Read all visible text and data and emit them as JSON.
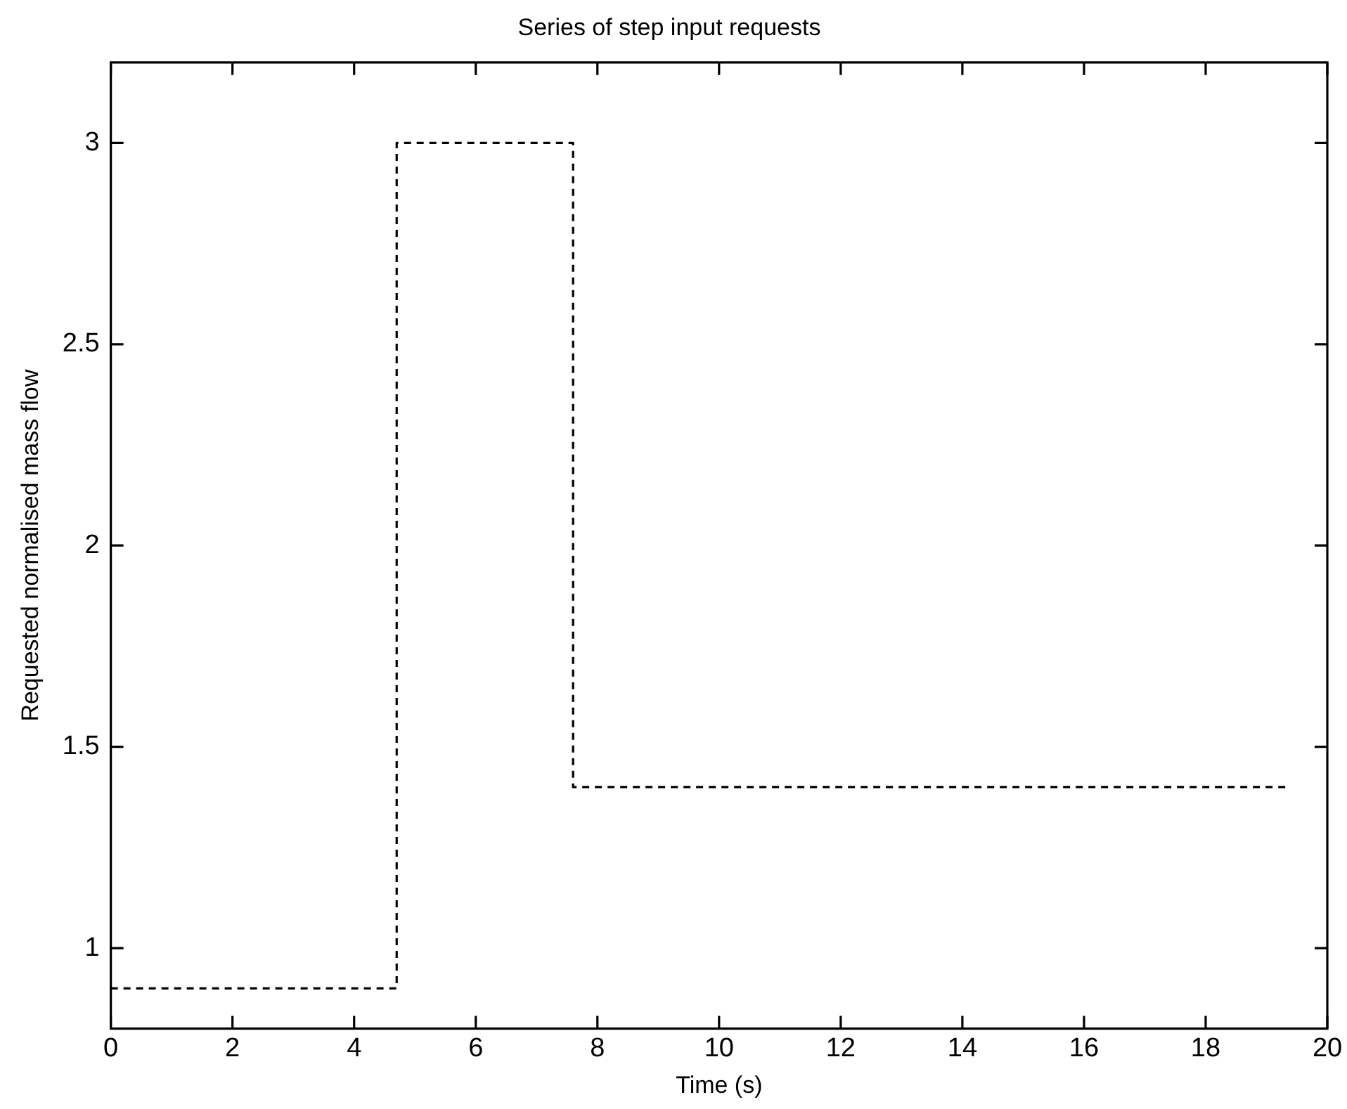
{
  "chart_data": {
    "type": "step",
    "title": "Series of step input requests",
    "xlabel": "Time (s)",
    "ylabel": "Requested normalised mass flow",
    "x": [
      0,
      4.7,
      7.6,
      19.4
    ],
    "series": [
      {
        "color": "#000000",
        "values": [
          0.9,
          3,
          1.4,
          1.4
        ]
      }
    ],
    "xlim": [
      0,
      20
    ],
    "xticks": [
      0,
      2,
      4,
      6,
      8,
      10,
      12,
      14,
      16,
      18,
      20
    ],
    "ylim": [
      0.8,
      3.2
    ],
    "yticks": [
      1,
      1.5,
      2,
      2.5,
      3
    ],
    "grid": false,
    "legend": false,
    "marker": "none",
    "line_style": "dashed"
  }
}
